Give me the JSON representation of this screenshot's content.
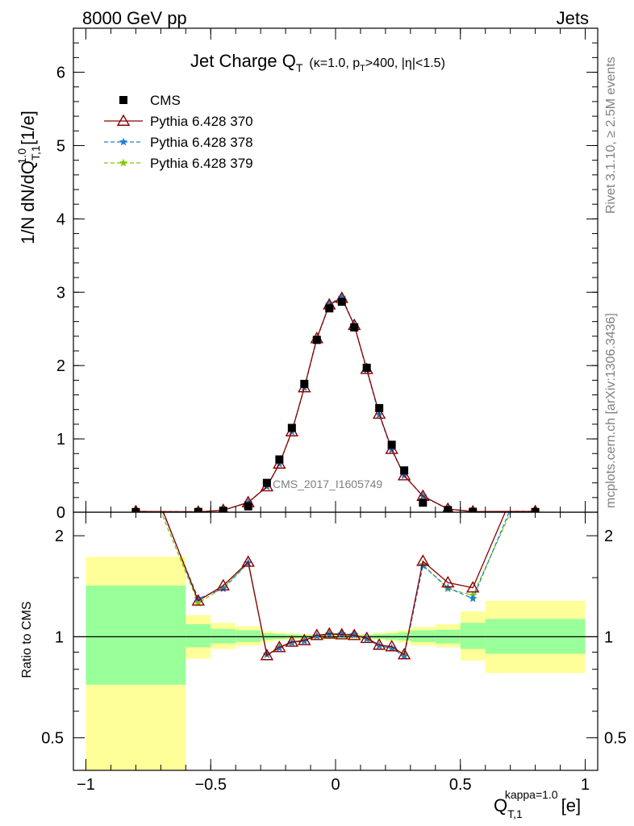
{
  "header": {
    "left": "8000 GeV pp",
    "right": "Jets"
  },
  "side_text": {
    "top": "Rivet 3.1.10, ≥ 2.5M events",
    "bottom": "mcplots.cern.ch [arXiv:1306.3436]"
  },
  "watermark": "CMS_2017_I1605749",
  "chart_data": [
    {
      "type": "scatter",
      "panel": "main",
      "title": "Jet Charge Q_T (κ=1.0, p_T>400, |η|<1.5)",
      "ylabel": "1/N dN/dQ_{T,1}^{1.0} [1/e]",
      "xlim": [
        -1.05,
        1.05
      ],
      "ylim": [
        0,
        6.6
      ],
      "y_ticks": [
        "0",
        "1",
        "2",
        "3",
        "4",
        "5",
        "6"
      ],
      "x": [
        -0.8,
        -0.55,
        -0.45,
        -0.35,
        -0.275,
        -0.225,
        -0.175,
        -0.125,
        -0.075,
        -0.025,
        0.025,
        0.075,
        0.125,
        0.175,
        0.225,
        0.275,
        0.35,
        0.45,
        0.55,
        0.8
      ],
      "legend_position": "top-left",
      "series": [
        {
          "name": "CMS",
          "color": "#000000",
          "marker": "square",
          "values": [
            0.003,
            0.004,
            0.02,
            0.08,
            0.4,
            0.72,
            1.15,
            1.75,
            2.35,
            2.78,
            2.87,
            2.52,
            1.97,
            1.42,
            0.92,
            0.57,
            0.13,
            0.03,
            0.006,
            0.003
          ]
        },
        {
          "name": "Pythia 6.428 370",
          "color": "#8b0000",
          "marker": "triangle",
          "linestyle": "solid",
          "values": [
            0.0115,
            0.0051,
            0.028,
            0.133,
            0.35,
            0.66,
            1.1,
            1.7,
            2.37,
            2.83,
            2.92,
            2.55,
            1.95,
            1.34,
            0.86,
            0.5,
            0.22,
            0.044,
            0.0086,
            0.0115
          ]
        },
        {
          "name": "Pythia 6.428 378",
          "color": "#1e7fd6",
          "marker": "star",
          "linestyle": "dashed",
          "values": [
            0.0112,
            0.0051,
            0.028,
            0.133,
            0.35,
            0.66,
            1.1,
            1.7,
            2.36,
            2.84,
            2.93,
            2.55,
            1.94,
            1.33,
            0.85,
            0.5,
            0.22,
            0.043,
            0.0082,
            0.0112
          ]
        },
        {
          "name": "Pythia 6.428 379",
          "color": "#7ccd00",
          "marker": "star",
          "linestyle": "dashed",
          "values": [
            0.011,
            0.005,
            0.028,
            0.132,
            0.35,
            0.66,
            1.1,
            1.7,
            2.36,
            2.84,
            2.93,
            2.55,
            1.94,
            1.33,
            0.85,
            0.5,
            0.22,
            0.043,
            0.0084,
            0.011
          ]
        }
      ]
    },
    {
      "type": "line",
      "panel": "ratio",
      "ylabel": "Ratio to CMS",
      "xlabel": "Q_{T,1}^{kappa=1.0} [e]",
      "xlim": [
        -1.05,
        1.05
      ],
      "ylim": [
        0.4,
        2.35
      ],
      "y_scale": "log",
      "y_ticks": [
        "0.5",
        "1",
        "2"
      ],
      "x_ticks": [
        "−1",
        "−0.5",
        "0",
        "0.5",
        "1"
      ],
      "x_tick_values": [
        -1,
        -0.5,
        0,
        0.5,
        1
      ],
      "bands": [
        {
          "lo": -1.0,
          "hi": -0.6,
          "green": [
            0.72,
            1.42
          ],
          "yellow": [
            0.38,
            1.73
          ]
        },
        {
          "lo": -0.6,
          "hi": -0.5,
          "green": [
            0.93,
            1.09
          ],
          "yellow": [
            0.86,
            1.16
          ]
        },
        {
          "lo": -0.5,
          "hi": -0.4,
          "green": [
            0.955,
            1.055
          ],
          "yellow": [
            0.92,
            1.1
          ]
        },
        {
          "lo": -0.4,
          "hi": -0.3,
          "green": [
            0.965,
            1.045
          ],
          "yellow": [
            0.94,
            1.075
          ]
        },
        {
          "lo": -0.3,
          "hi": -0.25,
          "green": [
            0.98,
            1.025
          ],
          "yellow": [
            0.965,
            1.04
          ]
        },
        {
          "lo": -0.25,
          "hi": -0.2,
          "green": [
            0.985,
            1.02
          ],
          "yellow": [
            0.975,
            1.03
          ]
        },
        {
          "lo": -0.2,
          "hi": -0.15,
          "green": [
            0.988,
            1.015
          ],
          "yellow": [
            0.98,
            1.025
          ]
        },
        {
          "lo": -0.15,
          "hi": -0.1,
          "green": [
            0.99,
            1.012
          ],
          "yellow": [
            0.983,
            1.02
          ]
        },
        {
          "lo": -0.1,
          "hi": -0.05,
          "green": [
            0.99,
            1.012
          ],
          "yellow": [
            0.983,
            1.02
          ]
        },
        {
          "lo": -0.05,
          "hi": 0.0,
          "green": [
            0.99,
            1.012
          ],
          "yellow": [
            0.983,
            1.02
          ]
        },
        {
          "lo": 0.0,
          "hi": 0.05,
          "green": [
            0.99,
            1.012
          ],
          "yellow": [
            0.983,
            1.02
          ]
        },
        {
          "lo": 0.05,
          "hi": 0.1,
          "green": [
            0.99,
            1.012
          ],
          "yellow": [
            0.983,
            1.02
          ]
        },
        {
          "lo": 0.1,
          "hi": 0.15,
          "green": [
            0.99,
            1.012
          ],
          "yellow": [
            0.983,
            1.02
          ]
        },
        {
          "lo": 0.15,
          "hi": 0.2,
          "green": [
            0.985,
            1.018
          ],
          "yellow": [
            0.977,
            1.028
          ]
        },
        {
          "lo": 0.2,
          "hi": 0.25,
          "green": [
            0.98,
            1.022
          ],
          "yellow": [
            0.97,
            1.035
          ]
        },
        {
          "lo": 0.25,
          "hi": 0.3,
          "green": [
            0.975,
            1.03
          ],
          "yellow": [
            0.96,
            1.045
          ]
        },
        {
          "lo": 0.3,
          "hi": 0.4,
          "green": [
            0.965,
            1.045
          ],
          "yellow": [
            0.94,
            1.07
          ]
        },
        {
          "lo": 0.4,
          "hi": 0.5,
          "green": [
            0.955,
            1.05
          ],
          "yellow": [
            0.93,
            1.09
          ]
        },
        {
          "lo": 0.5,
          "hi": 0.6,
          "green": [
            0.92,
            1.1
          ],
          "yellow": [
            0.85,
            1.19
          ]
        },
        {
          "lo": 0.6,
          "hi": 1.0,
          "green": [
            0.89,
            1.13
          ],
          "yellow": [
            0.78,
            1.28
          ]
        }
      ],
      "x": [
        -0.8,
        -0.55,
        -0.45,
        -0.35,
        -0.275,
        -0.225,
        -0.175,
        -0.125,
        -0.075,
        -0.025,
        0.025,
        0.075,
        0.125,
        0.175,
        0.225,
        0.275,
        0.35,
        0.45,
        0.55,
        0.8
      ],
      "series": [
        {
          "name": "Pythia 6.428 370",
          "color": "#8b0000",
          "marker": "triangle",
          "linestyle": "solid",
          "values": [
            3.8,
            1.28,
            1.42,
            1.67,
            0.88,
            0.93,
            0.965,
            0.975,
            1.01,
            1.02,
            1.015,
            1.01,
            0.99,
            0.945,
            0.935,
            0.885,
            1.68,
            1.45,
            1.4,
            3.8
          ]
        },
        {
          "name": "Pythia 6.428 378",
          "color": "#1e7fd6",
          "marker": "star",
          "linestyle": "dashed",
          "values": [
            3.7,
            1.3,
            1.39,
            1.66,
            0.885,
            0.925,
            0.96,
            0.97,
            1.005,
            1.02,
            1.02,
            1.015,
            0.985,
            0.94,
            0.925,
            0.875,
            1.63,
            1.4,
            1.3,
            3.6
          ]
        },
        {
          "name": "Pythia 6.428 379",
          "color": "#7ccd00",
          "marker": "star",
          "linestyle": "dashed",
          "values": [
            3.6,
            1.26,
            1.4,
            1.66,
            0.885,
            0.93,
            0.96,
            0.975,
            1.005,
            1.02,
            1.02,
            1.015,
            0.985,
            0.94,
            0.925,
            0.885,
            1.64,
            1.39,
            1.33,
            3.4
          ]
        }
      ]
    }
  ]
}
